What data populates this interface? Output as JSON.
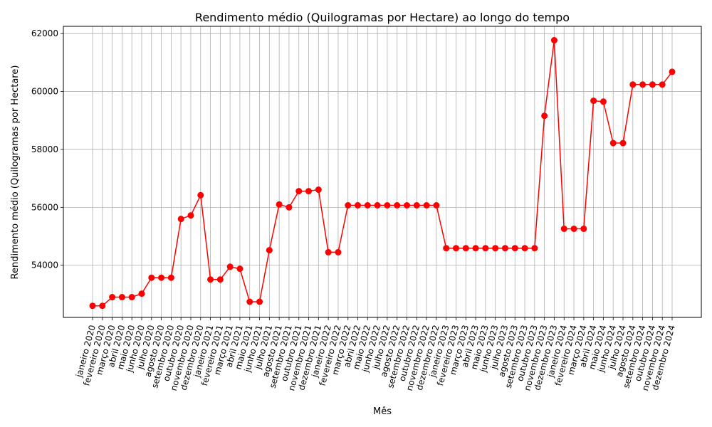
{
  "chart_data": {
    "type": "line",
    "title": "Rendimento médio (Quilogramas por Hectare) ao longo do tempo",
    "xlabel": "Mês",
    "ylabel": "Rendimento médio (Quilogramas por Hectare)",
    "ylim": [
      52200,
      62250
    ],
    "yticks": [
      54000,
      56000,
      58000,
      60000,
      62000
    ],
    "grid": true,
    "categories": [
      "janeiro 2020",
      "fevereiro 2020",
      "março 2020",
      "abril 2020",
      "maio 2020",
      "junho 2020",
      "julho 2020",
      "agosto 2020",
      "setembro 2020",
      "outubro 2020",
      "novembro 2020",
      "dezembro 2020",
      "janeiro 2021",
      "fevereiro 2021",
      "março 2021",
      "abril 2021",
      "maio 2021",
      "junho 2021",
      "julho 2021",
      "agosto 2021",
      "setembro 2021",
      "outubro 2021",
      "novembro 2021",
      "dezembro 2021",
      "janeiro 2022",
      "fevereiro 2022",
      "março 2022",
      "abril 2022",
      "maio 2022",
      "junho 2022",
      "julho 2022",
      "agosto 2022",
      "setembro 2022",
      "outubro 2022",
      "novembro 2022",
      "dezembro 2022",
      "janeiro 2023",
      "fevereiro 2023",
      "março 2023",
      "abril 2023",
      "maio 2023",
      "junho 2023",
      "julho 2023",
      "agosto 2023",
      "setembro 2023",
      "outubro 2023",
      "novembro 2023",
      "dezembro 2023",
      "janeiro 2024",
      "fevereiro 2024",
      "março 2024",
      "abril 2024",
      "maio 2024",
      "junho 2024",
      "julho 2024",
      "agosto 2024",
      "setembro 2024",
      "outubro 2024",
      "novembro 2024",
      "dezembro 2024"
    ],
    "series": [
      {
        "color": "#ff0000",
        "values": [
          52600,
          52600,
          52900,
          52900,
          52900,
          53020,
          53570,
          53570,
          53570,
          55600,
          55720,
          56420,
          53510,
          53510,
          53950,
          53880,
          52740,
          52740,
          54520,
          56100,
          56000,
          56560,
          56560,
          56610,
          54450,
          54450,
          56070,
          56070,
          56070,
          56070,
          56070,
          56070,
          56070,
          56070,
          56070,
          56070,
          54590,
          54590,
          54590,
          54590,
          54590,
          54590,
          54590,
          54590,
          54590,
          54590,
          59160,
          61770,
          55260,
          55260,
          55260,
          59680,
          59650,
          58220,
          58220,
          60240,
          60240,
          60240,
          60240,
          60680
        ]
      }
    ]
  }
}
